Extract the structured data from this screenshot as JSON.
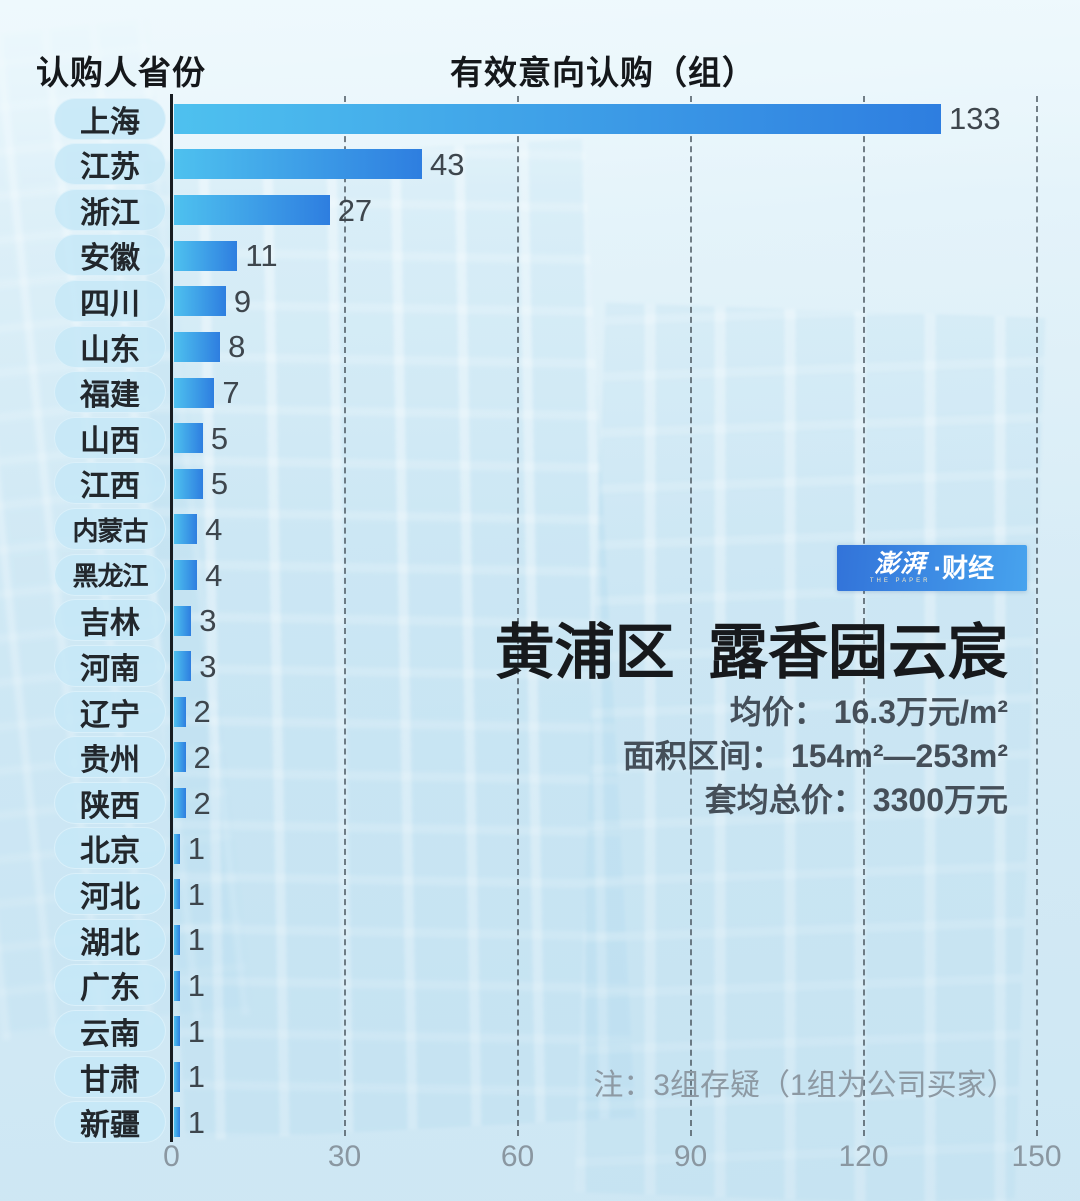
{
  "header": {
    "left": "认购人省份",
    "right": "有效意向认购（组）"
  },
  "chart_data": {
    "type": "bar",
    "orientation": "horizontal",
    "title": "有效意向认购（组）",
    "categories": [
      "上海",
      "江苏",
      "浙江",
      "安徽",
      "四川",
      "山东",
      "福建",
      "山西",
      "江西",
      "内蒙古",
      "黑龙江",
      "吉林",
      "河南",
      "辽宁",
      "贵州",
      "陕西",
      "北京",
      "河北",
      "湖北",
      "广东",
      "云南",
      "甘肃",
      "新疆"
    ],
    "values": [
      133,
      43,
      27,
      11,
      9,
      8,
      7,
      5,
      5,
      4,
      4,
      3,
      3,
      2,
      2,
      2,
      1,
      1,
      1,
      1,
      1,
      1,
      1
    ],
    "xlim": [
      0,
      150
    ],
    "x_ticks": [
      0,
      30,
      60,
      90,
      120,
      150
    ],
    "grid": "dashed-vertical",
    "legend": "none",
    "bar_gradient": [
      "#4ec1ef",
      "#2e7ee0"
    ],
    "gridline_color": "#4a565f",
    "tick_color": "#8a97a1",
    "value_color": "#3e464d"
  },
  "panel": {
    "logo": {
      "main": "澎湃",
      "sub": "THE PAPER",
      "suffix": "·财经",
      "bg_start": "#3273d9",
      "bg_end": "#47a3ee"
    },
    "title": "黄浦区  露香园云宸",
    "info": [
      {
        "label": "均价：",
        "value": "16.3万元/m²"
      },
      {
        "label": "面积区间：",
        "value": "154m²—253m²"
      },
      {
        "label": "套均总价：",
        "value": "3300万元"
      }
    ]
  },
  "note": "注：3组存疑（1组为公司买家）"
}
